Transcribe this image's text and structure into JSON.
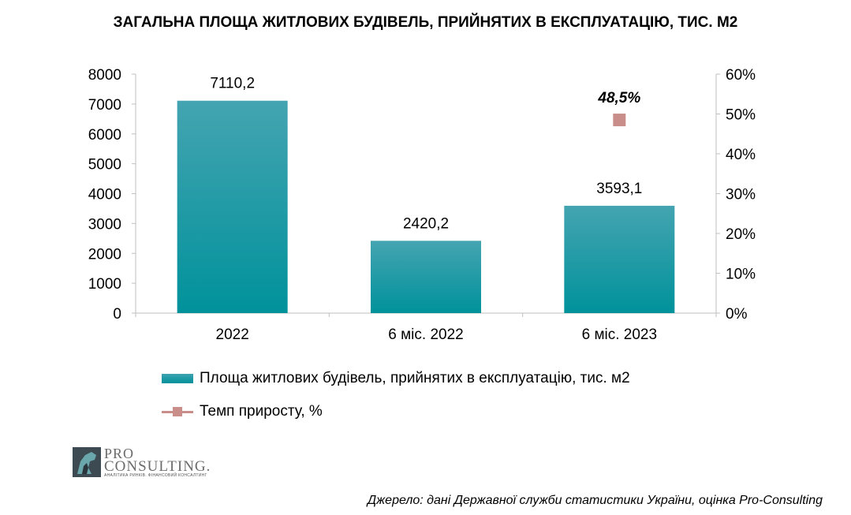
{
  "title": "ЗАГАЛЬНА ПЛОЩА ЖИТЛОВИХ БУДІВЕЛЬ, ПРИЙНЯТИХ В ЕКСПЛУАТАЦІЮ, ТИС. М2",
  "chart_data": {
    "type": "bar",
    "title": "ЗАГАЛЬНА ПЛОЩА ЖИТЛОВИХ БУДІВЕЛЬ, ПРИЙНЯТИХ В ЕКСПЛУАТАЦІЮ, ТИС. М2",
    "categories": [
      "2022",
      "6 міс. 2022",
      "6 міс. 2023"
    ],
    "series": [
      {
        "name": "Площа житлових будівель, прийнятих в експлуатацію, тис. м2",
        "kind": "bar",
        "axis": "left",
        "values": [
          7110.2,
          2420.2,
          3593.1
        ],
        "labels": [
          "7110,2",
          "2420,2",
          "3593,1"
        ],
        "color": "#1a9aa5"
      },
      {
        "name": "Темп приросту, %",
        "kind": "line",
        "axis": "right",
        "values": [
          null,
          null,
          48.5
        ],
        "labels": [
          "",
          "",
          "48,5%"
        ],
        "color": "#c98e89"
      }
    ],
    "ylim": [
      0,
      8000
    ],
    "y_ticks": [
      "0",
      "1000",
      "2000",
      "3000",
      "4000",
      "5000",
      "6000",
      "7000",
      "8000"
    ],
    "y2lim": [
      0,
      60
    ],
    "y2_ticks": [
      "0%",
      "10%",
      "20%",
      "30%",
      "40%",
      "50%",
      "60%"
    ],
    "grid": false,
    "legend_position": "bottom"
  },
  "logo": {
    "pro": "PRO",
    "consulting": "CONSULTING.",
    "tagline": "АНАЛІТИКА РИНКІВ. ФІНАНСОВИЙ КОНСАЛТИНГ"
  },
  "source": "Джерело: дані Державної служби статистики України, оцінка Pro-Consulting"
}
